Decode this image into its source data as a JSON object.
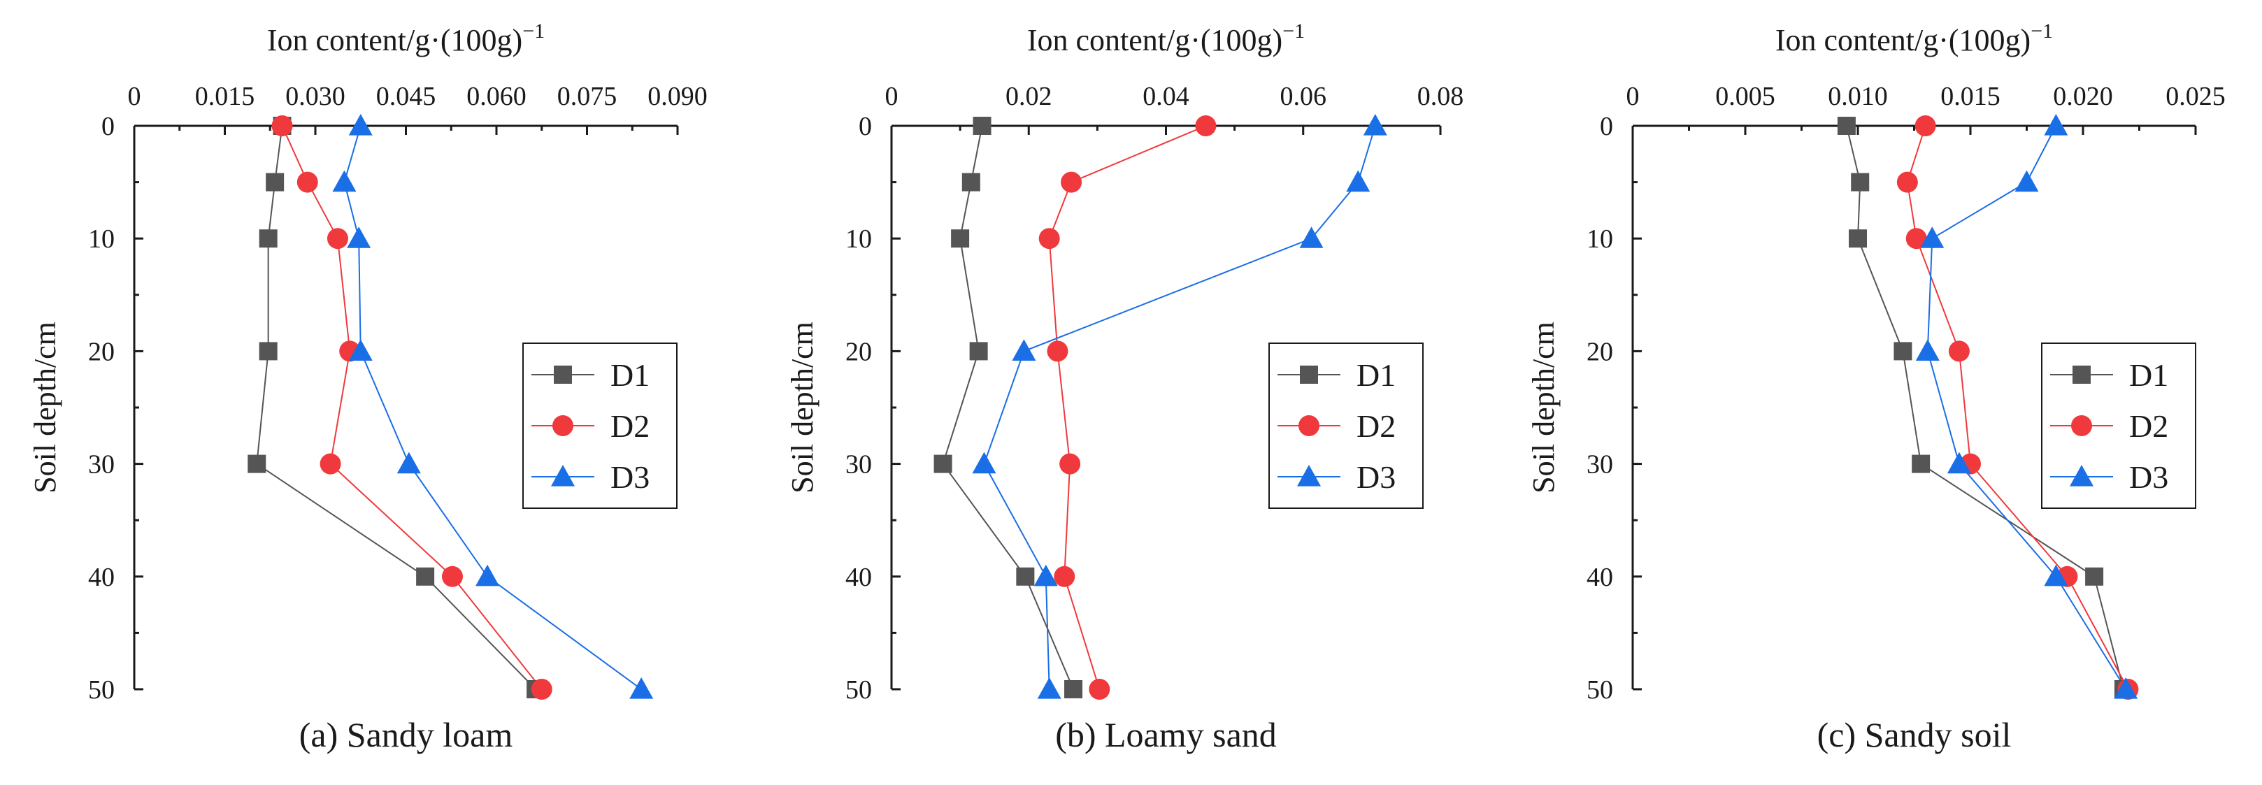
{
  "colors": {
    "D1": "#555555",
    "D2": "#f0393c",
    "D3": "#1a6ee6"
  },
  "chart_data": [
    {
      "type": "line",
      "caption": "(a) Sandy loam",
      "xlabel": "Ion content/g·(100g)",
      "xlabel_sup": "−1",
      "ylabel": "Soil depth/cm",
      "xlim": [
        0,
        0.09
      ],
      "ylim": [
        0,
        50
      ],
      "xticks": [
        "0",
        "0.015",
        "0.030",
        "0.045",
        "0.060",
        "0.075",
        "0.090"
      ],
      "xtick_values": [
        0,
        0.015,
        0.03,
        0.045,
        0.06,
        0.075,
        0.09
      ],
      "yticks": [
        "0",
        "10",
        "20",
        "30",
        "40",
        "50"
      ],
      "ytick_values": [
        0,
        10,
        20,
        30,
        40,
        50
      ],
      "depth": [
        0,
        5,
        10,
        20,
        30,
        40,
        50
      ],
      "series": [
        {
          "name": "D1",
          "marker": "square",
          "values": [
            0.0245,
            0.0233,
            0.0222,
            0.0222,
            0.0203,
            0.0482,
            0.0665
          ]
        },
        {
          "name": "D2",
          "marker": "circle",
          "values": [
            0.0245,
            0.0287,
            0.0337,
            0.0357,
            0.0325,
            0.0527,
            0.0675
          ]
        },
        {
          "name": "D3",
          "marker": "triangle",
          "values": [
            0.0375,
            0.0348,
            0.0372,
            0.0375,
            0.0455,
            0.0585,
            0.084
          ]
        }
      ],
      "legend": "right"
    },
    {
      "type": "line",
      "caption": "(b) Loamy sand",
      "xlabel": "Ion content/g·(100g)",
      "xlabel_sup": "−1",
      "ylabel": "Soil depth/cm",
      "xlim": [
        0,
        0.08
      ],
      "ylim": [
        0,
        50
      ],
      "xticks": [
        "0",
        "0.02",
        "0.04",
        "0.06",
        "0.08"
      ],
      "xtick_values": [
        0,
        0.02,
        0.04,
        0.06,
        0.08
      ],
      "yticks": [
        "0",
        "10",
        "20",
        "30",
        "40",
        "50"
      ],
      "ytick_values": [
        0,
        10,
        20,
        30,
        40,
        50
      ],
      "depth": [
        0,
        5,
        10,
        20,
        30,
        40,
        50
      ],
      "series": [
        {
          "name": "D1",
          "marker": "square",
          "values": [
            0.0132,
            0.0116,
            0.01,
            0.0127,
            0.0075,
            0.0195,
            0.0265
          ]
        },
        {
          "name": "D2",
          "marker": "circle",
          "values": [
            0.0458,
            0.0262,
            0.023,
            0.0242,
            0.026,
            0.0252,
            0.0303
          ]
        },
        {
          "name": "D3",
          "marker": "triangle",
          "values": [
            0.0705,
            0.068,
            0.0612,
            0.0193,
            0.0135,
            0.0225,
            0.023
          ]
        }
      ],
      "legend": "right"
    },
    {
      "type": "line",
      "caption": "(c) Sandy soil",
      "xlabel": "Ion content/g·(100g)",
      "xlabel_sup": "−1",
      "ylabel": "Soil depth/cm",
      "xlim": [
        0,
        0.025
      ],
      "ylim": [
        0,
        50
      ],
      "xticks": [
        "0",
        "0.005",
        "0.010",
        "0.015",
        "0.020",
        "0.025"
      ],
      "xtick_values": [
        0,
        0.005,
        0.01,
        0.015,
        0.02,
        0.025
      ],
      "yticks": [
        "0",
        "10",
        "20",
        "30",
        "40",
        "50"
      ],
      "ytick_values": [
        0,
        10,
        20,
        30,
        40,
        50
      ],
      "depth": [
        0,
        5,
        10,
        20,
        30,
        40,
        50
      ],
      "series": [
        {
          "name": "D1",
          "marker": "square",
          "values": [
            0.0095,
            0.0101,
            0.01,
            0.012,
            0.0128,
            0.0205,
            0.0218
          ]
        },
        {
          "name": "D2",
          "marker": "circle",
          "values": [
            0.013,
            0.0122,
            0.0126,
            0.0145,
            0.015,
            0.0193,
            0.022
          ]
        },
        {
          "name": "D3",
          "marker": "triangle",
          "values": [
            0.0188,
            0.0175,
            0.0133,
            0.0131,
            0.0145,
            0.0188,
            0.0219
          ]
        }
      ],
      "legend": "right"
    }
  ]
}
